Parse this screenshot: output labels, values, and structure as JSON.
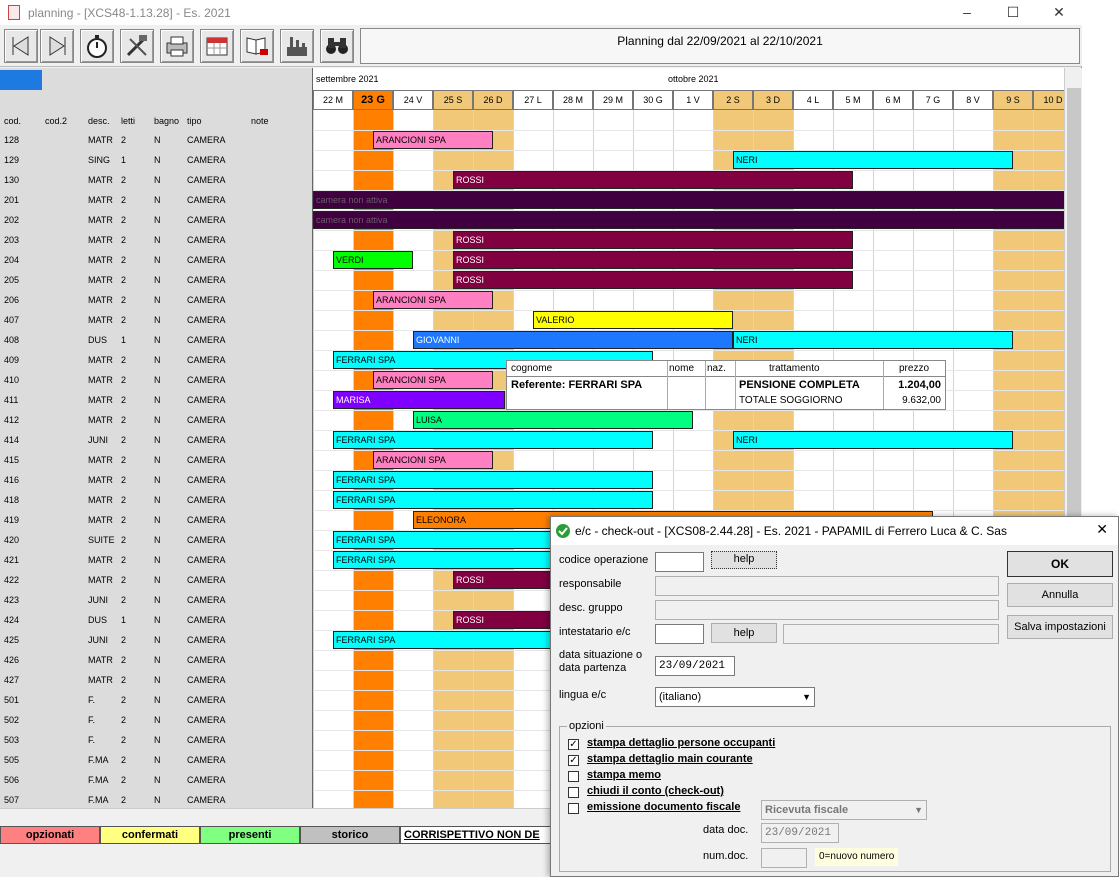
{
  "app": {
    "title": "planning - [XCS48-1.13.28] - Es. 2021",
    "window_controls": [
      "–",
      "☐",
      "✕"
    ],
    "planning_title": "Planning dal 22/09/2021 al 22/10/2021",
    "toolbar_icons": [
      "prev-icon",
      "next-icon",
      "stopwatch-icon",
      "tools-icon",
      "printer-icon",
      "calendar-icon",
      "book-print-icon",
      "factory-icon",
      "binoculars-icon"
    ]
  },
  "left_headers": {
    "cod": "cod.",
    "cod2": "cod.2",
    "desc": "desc.",
    "letti": "letti",
    "bagno": "bagno",
    "tipo": "tipo",
    "note": "note"
  },
  "rooms": [
    {
      "cod": "128",
      "desc": "MATR",
      "letti": "2",
      "bagno": "N",
      "tipo": "CAMERA"
    },
    {
      "cod": "129",
      "desc": "SING",
      "letti": "1",
      "bagno": "N",
      "tipo": "CAMERA"
    },
    {
      "cod": "130",
      "desc": "MATR",
      "letti": "2",
      "bagno": "N",
      "tipo": "CAMERA"
    },
    {
      "cod": "201",
      "desc": "MATR",
      "letti": "2",
      "bagno": "N",
      "tipo": "CAMERA"
    },
    {
      "cod": "202",
      "desc": "MATR",
      "letti": "2",
      "bagno": "N",
      "tipo": "CAMERA"
    },
    {
      "cod": "203",
      "desc": "MATR",
      "letti": "2",
      "bagno": "N",
      "tipo": "CAMERA"
    },
    {
      "cod": "204",
      "desc": "MATR",
      "letti": "2",
      "bagno": "N",
      "tipo": "CAMERA"
    },
    {
      "cod": "205",
      "desc": "MATR",
      "letti": "2",
      "bagno": "N",
      "tipo": "CAMERA"
    },
    {
      "cod": "206",
      "desc": "MATR",
      "letti": "2",
      "bagno": "N",
      "tipo": "CAMERA"
    },
    {
      "cod": "407",
      "desc": "MATR",
      "letti": "2",
      "bagno": "N",
      "tipo": "CAMERA"
    },
    {
      "cod": "408",
      "desc": "DUS",
      "letti": "1",
      "bagno": "N",
      "tipo": "CAMERA"
    },
    {
      "cod": "409",
      "desc": "MATR",
      "letti": "2",
      "bagno": "N",
      "tipo": "CAMERA"
    },
    {
      "cod": "410",
      "desc": "MATR",
      "letti": "2",
      "bagno": "N",
      "tipo": "CAMERA"
    },
    {
      "cod": "411",
      "desc": "MATR",
      "letti": "2",
      "bagno": "N",
      "tipo": "CAMERA"
    },
    {
      "cod": "412",
      "desc": "MATR",
      "letti": "2",
      "bagno": "N",
      "tipo": "CAMERA"
    },
    {
      "cod": "414",
      "desc": "JUNI",
      "letti": "2",
      "bagno": "N",
      "tipo": "CAMERA"
    },
    {
      "cod": "415",
      "desc": "MATR",
      "letti": "2",
      "bagno": "N",
      "tipo": "CAMERA"
    },
    {
      "cod": "416",
      "desc": "MATR",
      "letti": "2",
      "bagno": "N",
      "tipo": "CAMERA"
    },
    {
      "cod": "418",
      "desc": "MATR",
      "letti": "2",
      "bagno": "N",
      "tipo": "CAMERA"
    },
    {
      "cod": "419",
      "desc": "MATR",
      "letti": "2",
      "bagno": "N",
      "tipo": "CAMERA"
    },
    {
      "cod": "420",
      "desc": "SUITE",
      "letti": "2",
      "bagno": "N",
      "tipo": "CAMERA"
    },
    {
      "cod": "421",
      "desc": "MATR",
      "letti": "2",
      "bagno": "N",
      "tipo": "CAMERA"
    },
    {
      "cod": "422",
      "desc": "MATR",
      "letti": "2",
      "bagno": "N",
      "tipo": "CAMERA"
    },
    {
      "cod": "423",
      "desc": "JUNI",
      "letti": "2",
      "bagno": "N",
      "tipo": "CAMERA"
    },
    {
      "cod": "424",
      "desc": "DUS",
      "letti": "1",
      "bagno": "N",
      "tipo": "CAMERA"
    },
    {
      "cod": "425",
      "desc": "JUNI",
      "letti": "2",
      "bagno": "N",
      "tipo": "CAMERA"
    },
    {
      "cod": "426",
      "desc": "MATR",
      "letti": "2",
      "bagno": "N",
      "tipo": "CAMERA"
    },
    {
      "cod": "427",
      "desc": "MATR",
      "letti": "2",
      "bagno": "N",
      "tipo": "CAMERA"
    },
    {
      "cod": "501",
      "desc": "F.",
      "letti": "2",
      "bagno": "N",
      "tipo": "CAMERA"
    },
    {
      "cod": "502",
      "desc": "F.",
      "letti": "2",
      "bagno": "N",
      "tipo": "CAMERA"
    },
    {
      "cod": "503",
      "desc": "F.",
      "letti": "2",
      "bagno": "N",
      "tipo": "CAMERA"
    },
    {
      "cod": "505",
      "desc": "F.MA",
      "letti": "2",
      "bagno": "N",
      "tipo": "CAMERA"
    },
    {
      "cod": "506",
      "desc": "F.MA",
      "letti": "2",
      "bagno": "N",
      "tipo": "CAMERA"
    },
    {
      "cod": "507",
      "desc": "F.MA",
      "letti": "2",
      "bagno": "N",
      "tipo": "CAMERA"
    }
  ],
  "months": [
    {
      "label": "settembre 2021",
      "start_day": 0
    },
    {
      "label": "ottobre 2021",
      "start_day": 9
    }
  ],
  "days": [
    {
      "label": "22 M",
      "type": "normal"
    },
    {
      "label": "23 G",
      "type": "today"
    },
    {
      "label": "24 V",
      "type": "normal"
    },
    {
      "label": "25 S",
      "type": "weekend"
    },
    {
      "label": "26 D",
      "type": "weekend"
    },
    {
      "label": "27 L",
      "type": "normal"
    },
    {
      "label": "28 M",
      "type": "normal"
    },
    {
      "label": "29 M",
      "type": "normal"
    },
    {
      "label": "30 G",
      "type": "normal"
    },
    {
      "label": "1 V",
      "type": "normal"
    },
    {
      "label": "2 S",
      "type": "weekend"
    },
    {
      "label": "3 D",
      "type": "weekend"
    },
    {
      "label": "4 L",
      "type": "normal"
    },
    {
      "label": "5 M",
      "type": "normal"
    },
    {
      "label": "6 M",
      "type": "normal"
    },
    {
      "label": "7 G",
      "type": "normal"
    },
    {
      "label": "8 V",
      "type": "normal"
    },
    {
      "label": "9 S",
      "type": "weekend"
    },
    {
      "label": "10 D",
      "type": "weekend"
    }
  ],
  "colors": {
    "today": "#ff8000",
    "weekend": "#f0c878",
    "pink": "#ff80c0",
    "maroon": "#800040",
    "darkpurple": "#400040",
    "cyan": "#00ffff",
    "green": "#00ff00",
    "blue": "#1e78ff",
    "yellow": "#ffff00",
    "violet": "#8000ff",
    "seagreen": "#00ff80",
    "orange": "#ff8000"
  },
  "bookings": [
    {
      "row": 0,
      "start": 1.5,
      "end": 4.5,
      "label": "ARANCIONI SPA",
      "color": "pink"
    },
    {
      "row": 1,
      "start": 10.5,
      "end": 17.5,
      "label": "NERI",
      "color": "cyan"
    },
    {
      "row": 2,
      "start": 3.5,
      "end": 13.5,
      "label": "ROSSI",
      "color": "maroon"
    },
    {
      "row": 3,
      "start": 0,
      "end": 19,
      "label": "camera non attiva",
      "color": "darkpurple"
    },
    {
      "row": 4,
      "start": 0,
      "end": 19,
      "label": "camera non attiva",
      "color": "darkpurple"
    },
    {
      "row": 5,
      "start": 3.5,
      "end": 13.5,
      "label": "ROSSI",
      "color": "maroon"
    },
    {
      "row": 6,
      "start": 0.5,
      "end": 2.5,
      "label": "VERDI",
      "color": "green"
    },
    {
      "row": 6,
      "start": 3.5,
      "end": 13.5,
      "label": "ROSSI",
      "color": "maroon"
    },
    {
      "row": 7,
      "start": 3.5,
      "end": 13.5,
      "label": "ROSSI",
      "color": "maroon"
    },
    {
      "row": 8,
      "start": 1.5,
      "end": 4.5,
      "label": "ARANCIONI SPA",
      "color": "pink"
    },
    {
      "row": 9,
      "start": 5.5,
      "end": 10.5,
      "label": "VALERIO",
      "color": "yellow"
    },
    {
      "row": 10,
      "start": 2.5,
      "end": 10.5,
      "label": "GIOVANNI",
      "color": "blue"
    },
    {
      "row": 10,
      "start": 10.5,
      "end": 17.5,
      "label": "NERI",
      "color": "cyan"
    },
    {
      "row": 11,
      "start": 0.5,
      "end": 8.5,
      "label": "FERRARI SPA",
      "color": "cyan"
    },
    {
      "row": 12,
      "start": 1.5,
      "end": 4.5,
      "label": "ARANCIONI SPA",
      "color": "pink"
    },
    {
      "row": 13,
      "start": 0.5,
      "end": 4.8,
      "label": "MARISA",
      "color": "violet"
    },
    {
      "row": 14,
      "start": 2.5,
      "end": 9.5,
      "label": "LUISA",
      "color": "seagreen"
    },
    {
      "row": 15,
      "start": 0.5,
      "end": 8.5,
      "label": "FERRARI SPA",
      "color": "cyan"
    },
    {
      "row": 15,
      "start": 10.5,
      "end": 17.5,
      "label": "NERI",
      "color": "cyan"
    },
    {
      "row": 16,
      "start": 1.5,
      "end": 4.5,
      "label": "ARANCIONI SPA",
      "color": "pink"
    },
    {
      "row": 17,
      "start": 0.5,
      "end": 8.5,
      "label": "FERRARI SPA",
      "color": "cyan"
    },
    {
      "row": 18,
      "start": 0.5,
      "end": 8.5,
      "label": "FERRARI SPA",
      "color": "cyan"
    },
    {
      "row": 19,
      "start": 2.5,
      "end": 15.5,
      "label": "ELEONORA",
      "color": "orange"
    },
    {
      "row": 20,
      "start": 0.5,
      "end": 8.5,
      "label": "FERRARI SPA",
      "color": "cyan"
    },
    {
      "row": 21,
      "start": 0.5,
      "end": 8.5,
      "label": "FERRARI SPA",
      "color": "cyan"
    },
    {
      "row": 22,
      "start": 3.5,
      "end": 13.5,
      "label": "ROSSI",
      "color": "maroon"
    },
    {
      "row": 24,
      "start": 3.5,
      "end": 13.5,
      "label": "ROSSI",
      "color": "maroon"
    },
    {
      "row": 25,
      "start": 0.5,
      "end": 8.5,
      "label": "FERRARI SPA",
      "color": "cyan"
    }
  ],
  "tooltip": {
    "headers": [
      "cognome",
      "nome",
      "naz.",
      "trattamento",
      "prezzo"
    ],
    "referente": "Referente: FERRARI SPA",
    "trattamento": "PENSIONE COMPLETA",
    "prezzo": "1.204,00",
    "totale_label": "TOTALE SOGGIORNO",
    "totale": "9.632,00"
  },
  "legend": [
    {
      "label": "opzionati",
      "color": "#ff8080"
    },
    {
      "label": "confermati",
      "color": "#ffff80"
    },
    {
      "label": "presenti",
      "color": "#80ff80"
    },
    {
      "label": "storico",
      "color": "#c0c0c0"
    }
  ],
  "legend_extra": "CORRISPETTIVO NON DE",
  "dialog": {
    "title": "e/c - check-out - [XCS08-2.44.28] - Es. 2021 - PAPAMIL di Ferrero Luca & C. Sas",
    "close": "✕",
    "codice_operazione": "codice operazione",
    "help": "help",
    "responsabile": "responsabile",
    "desc_gruppo": "desc. gruppo",
    "intestatario": "intestatario e/c",
    "data_label_1": "data situazione o",
    "data_label_2": "data partenza",
    "data_value": "23/09/2021",
    "lingua": "lingua e/c",
    "lingua_value": "(italiano)",
    "ok": "OK",
    "annulla": "Annulla",
    "salva": "Salva impostazioni",
    "opzioni": "opzioni",
    "options": [
      {
        "label": "stampa dettaglio persone occupanti",
        "checked": true
      },
      {
        "label": "stampa dettaglio main courante",
        "checked": true
      },
      {
        "label": "stampa memo",
        "checked": false
      },
      {
        "label": "chiudi il conto (check-out)",
        "checked": false
      },
      {
        "label": "emissione documento fiscale",
        "checked": false
      }
    ],
    "doc_type": "Ricevuta fiscale",
    "data_doc_label": "data doc.",
    "data_doc_value": "23/09/2021",
    "num_doc_label": "num.doc.",
    "num_doc_hint": "0=nuovo numero"
  }
}
